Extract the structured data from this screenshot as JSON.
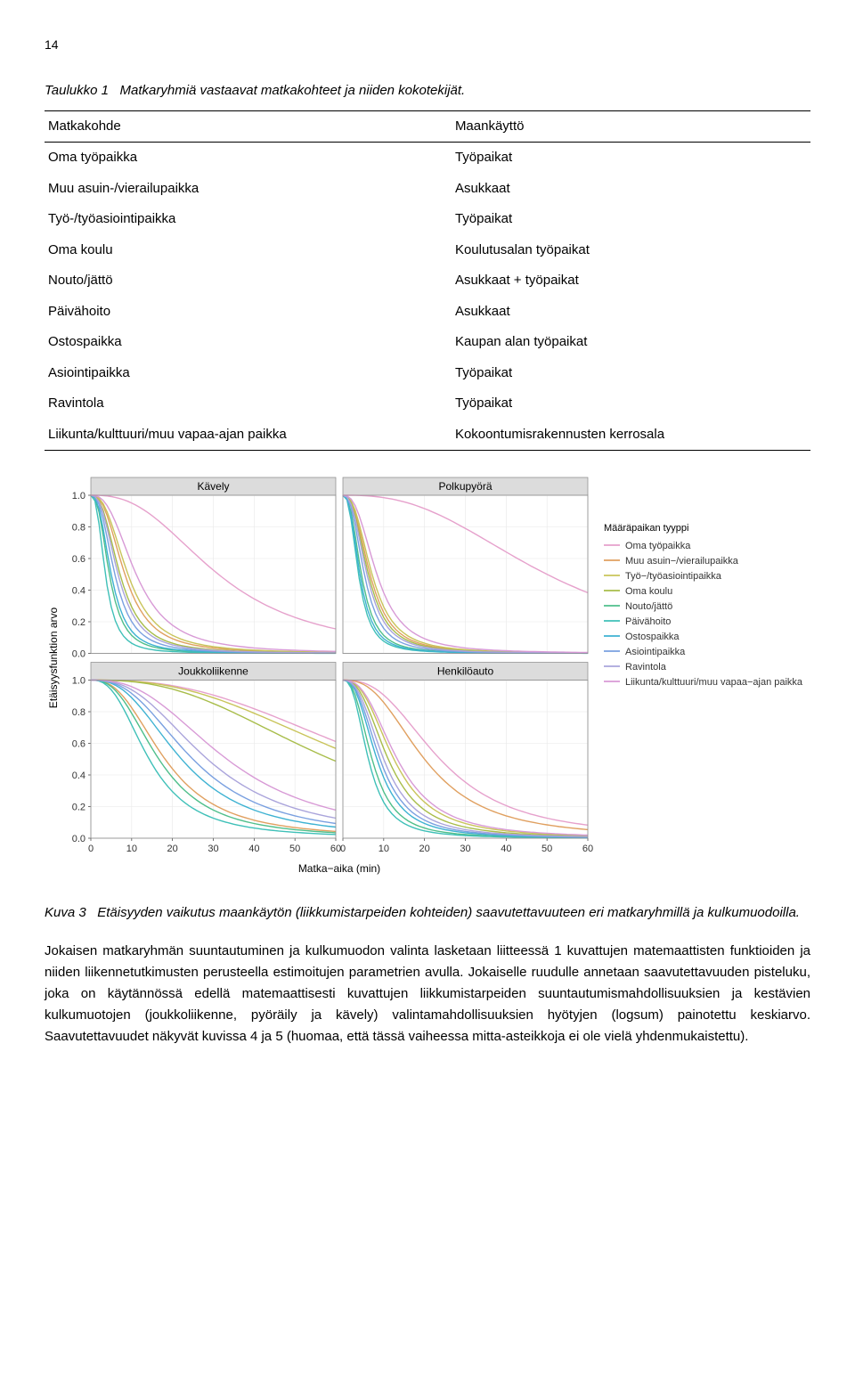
{
  "page_number": "14",
  "table": {
    "caption_label": "Taulukko 1",
    "caption_text": "Matkaryhmiä vastaavat matkakohteet ja niiden kokotekijät.",
    "header_left": "Matkakohde",
    "header_right": "Maankäyttö",
    "rows": [
      {
        "l": "Oma työpaikka",
        "r": "Työpaikat"
      },
      {
        "l": "Muu asuin-/vierailupaikka",
        "r": "Asukkaat"
      },
      {
        "l": "Työ-/työasiointipaikka",
        "r": "Työpaikat"
      },
      {
        "l": "Oma koulu",
        "r": "Koulutusalan työpaikat"
      },
      {
        "l": "Nouto/jättö",
        "r": "Asukkaat + työpaikat"
      },
      {
        "l": "Päivähoito",
        "r": "Asukkaat"
      },
      {
        "l": "Ostospaikka",
        "r": "Kaupan alan työpaikat"
      },
      {
        "l": "Asiointipaikka",
        "r": "Työpaikat"
      },
      {
        "l": "Ravintola",
        "r": "Työpaikat"
      },
      {
        "l": "Liikunta/kulttuuri/muu vapaa-ajan paikka",
        "r": "Kokoontumisrakennusten kerrosala"
      }
    ]
  },
  "figure": {
    "panels": [
      "Kävely",
      "Polkupyörä",
      "Joukkoliikenne",
      "Henkilöauto"
    ],
    "y_label": "Etäisyysfunktion arvo",
    "x_label": "Matka−aika (min)",
    "legend_title": "Määräpaikan tyyppi",
    "legend_items": [
      {
        "label": "Oma työpaikka",
        "color": "#e6a1cc"
      },
      {
        "label": "Muu asuin−/vierailupaikka",
        "color": "#e0a060"
      },
      {
        "label": "Työ−/työasiointipaikka",
        "color": "#c9c45a"
      },
      {
        "label": "Oma koulu",
        "color": "#a8bd4a"
      },
      {
        "label": "Nouto/jättö",
        "color": "#4fbf8b"
      },
      {
        "label": "Päivähoito",
        "color": "#3fc0b8"
      },
      {
        "label": "Ostospaikka",
        "color": "#3eb2d2"
      },
      {
        "label": "Asiointipaikka",
        "color": "#7aa0e0"
      },
      {
        "label": "Ravintola",
        "color": "#aaa4db"
      },
      {
        "label": "Liikunta/kulttuuri/muu vapaa−ajan paikka",
        "color": "#d89ad6"
      }
    ],
    "y_ticks_top": [
      "1.0",
      "0.8",
      "0.6",
      "0.4",
      "0.2",
      "0.0"
    ],
    "y_ticks_bot": [
      "1.0",
      "0.8",
      "0.6",
      "0.4",
      "0.2",
      "0.0"
    ],
    "x_ticks": [
      "0",
      "10",
      "20",
      "30",
      "40",
      "50",
      "60"
    ],
    "xlim": [
      0,
      60
    ],
    "ylim": [
      0,
      1
    ],
    "panel_border_color": "#888888",
    "panel_bg": "#ffffff",
    "strip_bg": "#dcdcdc",
    "grid_color": "#e8e8e8",
    "axis_fontsize": 11,
    "strip_fontsize": 12,
    "legend_fontsize": 11,
    "curves": {
      "Kävely": {
        "Oma työpaikka": 0.032,
        "Muu asuin−/vierailupaikka": 0.12,
        "Työ−/työasiointipaikka": 0.11,
        "Oma koulu": 0.14,
        "Nouto/jättö": 0.22,
        "Päivähoito": 0.28,
        "Ostospaikka": 0.2,
        "Asiointipaikka": 0.17,
        "Ravintola": 0.15,
        "Liikunta/kulttuuri/muu vapaa−ajan paikka": 0.09
      },
      "Polkupyörä": {
        "Oma työpaikka": 0.02,
        "Muu asuin−/vierailupaikka": 0.15,
        "Työ−/työasiointipaikka": 0.14,
        "Oma koulu": 0.16,
        "Nouto/jättö": 0.22,
        "Päivähoito": 0.26,
        "Ostospaikka": 0.24,
        "Asiointipaikka": 0.19,
        "Ravintola": 0.17,
        "Liikunta/kulttuuri/muu vapaa−ajan paikka": 0.12
      },
      "Joukkoliikenne": {
        "Oma työpaikka": 0.014,
        "Muu asuin−/vierailupaikka": 0.055,
        "Työ−/työasiointipaikka": 0.015,
        "Oma koulu": 0.017,
        "Nouto/jättö": 0.06,
        "Päivähoito": 0.07,
        "Ostospaikka": 0.045,
        "Asiointipaikka": 0.04,
        "Ravintola": 0.035,
        "Liikunta/kulttuuri/muu vapaa−ajan paikka": 0.03
      },
      "Henkilöauto": {
        "Oma työpaikka": 0.042,
        "Muu asuin−/vierailupaikka": 0.05,
        "Työ−/työasiointipaikka": 0.08,
        "Oma koulu": 0.09,
        "Nouto/jättö": 0.14,
        "Päivähoito": 0.16,
        "Ostospaikka": 0.12,
        "Asiointipaikka": 0.11,
        "Ravintola": 0.1,
        "Liikunta/kulttuuri/muu vapaa−ajan paikka": 0.075
      }
    },
    "caption_label": "Kuva 3",
    "caption_text": "Etäisyyden vaikutus maankäytön (liikkumistarpeiden kohteiden) saavutettavuuteen eri matkaryhmillä ja kulkumuodoilla."
  },
  "body": {
    "para": "Jokaisen matkaryhmän suuntautuminen ja kulkumuodon valinta lasketaan liitteessä 1 kuvattujen matemaattisten funktioiden ja niiden liikennetutkimusten perusteella estimoitujen parametrien avulla. Jokaiselle ruudulle annetaan saavutettavuuden pisteluku, joka on käytännössä edellä matemaattisesti kuvattujen liikkumistarpeiden suuntautumismahdollisuuksien ja kestävien kulkumuotojen (joukkoliikenne, pyöräily ja kävely) valintamahdollisuuksien hyötyjen (logsum) painotettu keskiarvo. Saavutettavuudet näkyvät kuvissa 4 ja 5 (huomaa, että tässä vaiheessa mitta-asteikkoja ei ole vielä yhdenmukaistettu)."
  }
}
